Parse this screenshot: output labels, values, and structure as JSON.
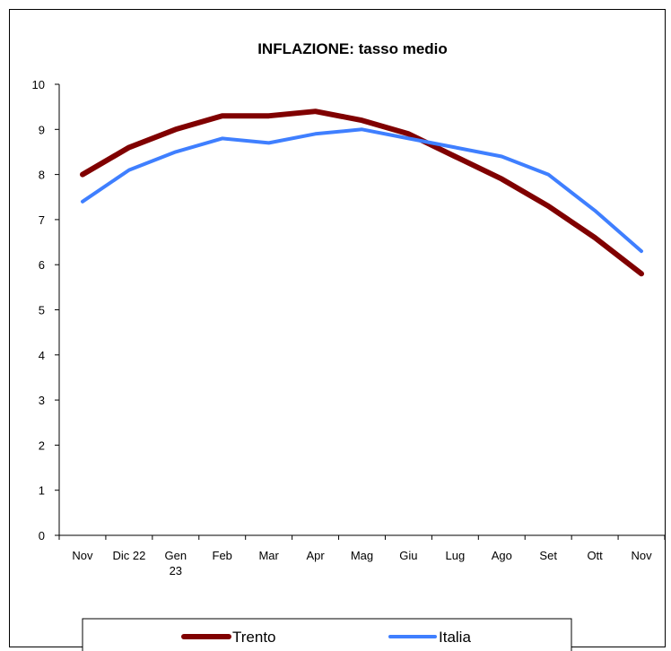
{
  "chart_data": {
    "type": "line",
    "title": "INFLAZIONE: tasso medio",
    "xlabel": "",
    "ylabel": "",
    "categories": [
      "Nov",
      "Dic 22",
      "Gen|23",
      "Feb",
      "Mar",
      "Apr",
      "Mag",
      "Giu",
      "Lug",
      "Ago",
      "Set",
      "Ott",
      "Nov"
    ],
    "ylim": [
      0,
      10
    ],
    "yticks": [
      0,
      1,
      2,
      3,
      4,
      5,
      6,
      7,
      8,
      9,
      10
    ],
    "grid": false,
    "legend": "bottom",
    "series": [
      {
        "name": "Trento",
        "color": "#800000",
        "values": [
          8.0,
          8.6,
          9.0,
          9.3,
          9.3,
          9.4,
          9.2,
          8.9,
          8.4,
          7.9,
          7.3,
          6.6,
          5.8
        ]
      },
      {
        "name": "Italia",
        "color": "#3f7fff",
        "values": [
          7.4,
          8.1,
          8.5,
          8.8,
          8.7,
          8.9,
          9.0,
          8.8,
          8.6,
          8.4,
          8.0,
          7.2,
          6.3
        ]
      }
    ]
  }
}
